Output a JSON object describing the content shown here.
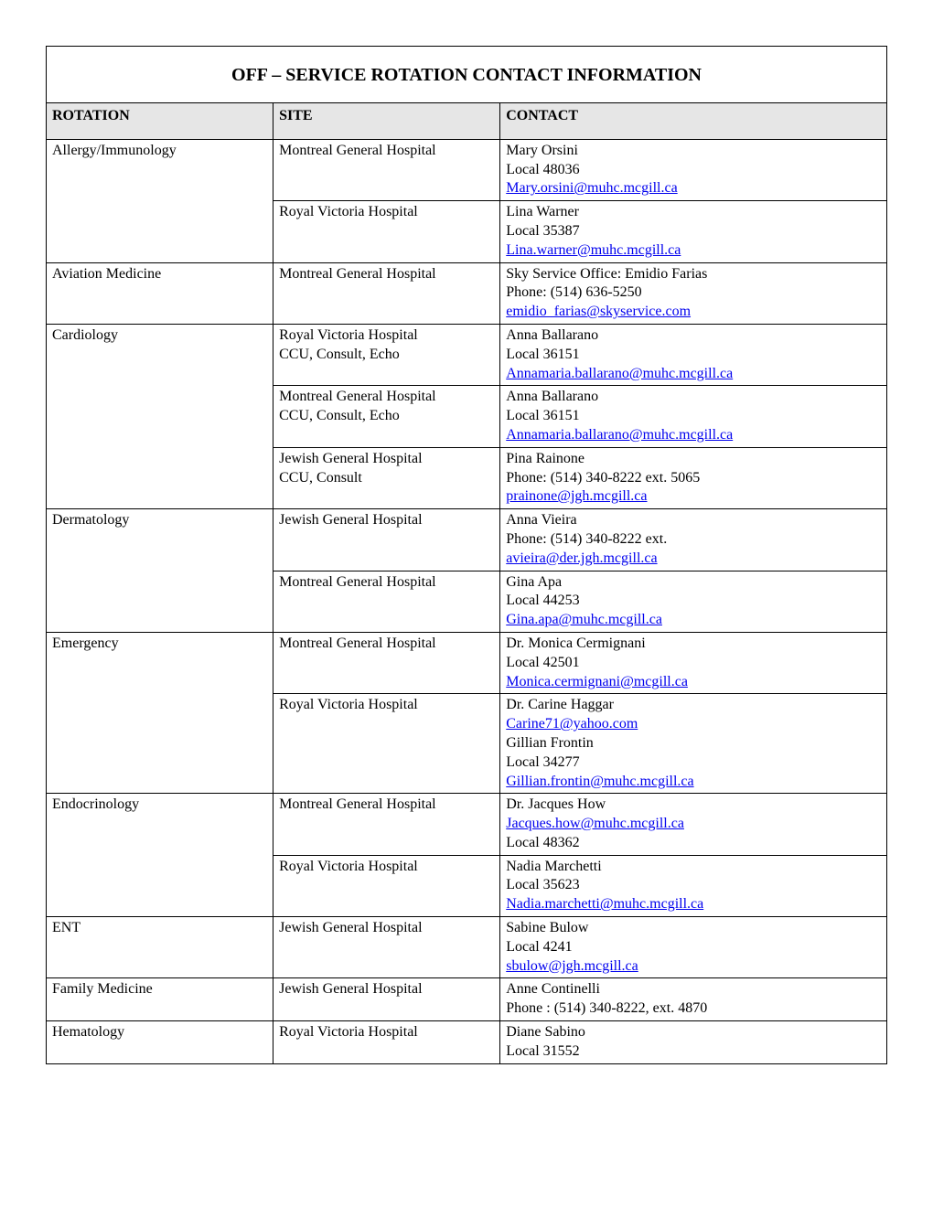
{
  "title": "OFF – SERVICE ROTATION CONTACT INFORMATION",
  "headers": {
    "rotation": "ROTATION",
    "site": "SITE",
    "contact": "CONTACT"
  },
  "rows": [
    {
      "rotation": "Allergy/Immunology",
      "rowspan": 2,
      "site": "Montreal General Hospital",
      "contact": {
        "lines": [
          "Mary Orsini",
          "Local 48036"
        ],
        "email": "Mary.orsini@muhc.mcgill.ca"
      }
    },
    {
      "rotation": "",
      "site": "Royal Victoria Hospital",
      "contact": {
        "lines": [
          "Lina Warner",
          "Local 35387"
        ],
        "email": "Lina.warner@muhc.mcgill.ca"
      }
    },
    {
      "rotation": "Aviation Medicine",
      "rowspan": 1,
      "site": "Montreal General Hospital",
      "contact": {
        "lines": [
          "Sky Service Office: Emidio Farias",
          "Phone: (514) 636-5250"
        ],
        "email": "emidio_farias@skyservice.com"
      }
    },
    {
      "rotation": "Cardiology",
      "rowspan": 3,
      "site": "Royal Victoria Hospital\nCCU, Consult, Echo",
      "contact": {
        "lines": [
          "Anna Ballarano",
          "Local 36151"
        ],
        "email": "Annamaria.ballarano@muhc.mcgill.ca"
      }
    },
    {
      "rotation": "",
      "site": "Montreal General Hospital\nCCU, Consult, Echo",
      "contact": {
        "lines": [
          "Anna Ballarano",
          "Local 36151"
        ],
        "email": "Annamaria.ballarano@muhc.mcgill.ca"
      }
    },
    {
      "rotation": "",
      "site": "Jewish General Hospital\nCCU, Consult",
      "contact": {
        "lines": [
          "Pina Rainone",
          "Phone: (514) 340-8222 ext. 5065"
        ],
        "email": "prainone@jgh.mcgill.ca"
      }
    },
    {
      "rotation": "Dermatology",
      "rowspan": 2,
      "site": "Jewish General Hospital",
      "contact": {
        "lines": [
          "Anna Vieira",
          "Phone: (514) 340-8222 ext."
        ],
        "email": "avieira@der.jgh.mcgill.ca"
      }
    },
    {
      "rotation": "",
      "site": "Montreal General Hospital",
      "contact": {
        "lines": [
          "Gina Apa",
          "Local 44253"
        ],
        "email": "Gina.apa@muhc.mcgill.ca"
      }
    },
    {
      "rotation": "Emergency",
      "rowspan": 2,
      "site": "Montreal General Hospital",
      "contact": {
        "lines": [
          "Dr. Monica Cermignani",
          "Local 42501"
        ],
        "email": "Monica.cermignani@mcgill.ca"
      }
    },
    {
      "rotation": "",
      "site": "Royal Victoria Hospital",
      "contact": {
        "lines": [
          "Dr. Carine Haggar"
        ],
        "email": "Carine71@yahoo.com",
        "lines2": [
          "Gillian Frontin",
          "Local 34277"
        ],
        "email2": "Gillian.frontin@muhc.mcgill.ca"
      }
    },
    {
      "rotation": "Endocrinology",
      "rowspan": 2,
      "site": "Montreal General Hospital",
      "contact": {
        "lines": [
          "Dr. Jacques How"
        ],
        "email": "Jacques.how@muhc.mcgill.ca",
        "lines2": [
          "Local 48362"
        ]
      }
    },
    {
      "rotation": "",
      "site": "Royal Victoria Hospital",
      "contact": {
        "lines": [
          "Nadia Marchetti",
          "Local 35623"
        ],
        "email": "Nadia.marchetti@muhc.mcgill.ca"
      }
    },
    {
      "rotation": "ENT",
      "rowspan": 1,
      "site": "Jewish General Hospital",
      "contact": {
        "lines": [
          "Sabine Bulow",
          "Local 4241"
        ],
        "email": "sbulow@jgh.mcgill.ca"
      }
    },
    {
      "rotation": "Family Medicine",
      "rowspan": 1,
      "site": "Jewish General Hospital",
      "contact": {
        "lines": [
          "Anne Continelli",
          "Phone : (514) 340-8222, ext. 4870",
          ""
        ],
        "email": ""
      }
    },
    {
      "rotation": "Hematology",
      "rowspan": 1,
      "site": "Royal Victoria Hospital",
      "contact": {
        "lines": [
          "Diane Sabino",
          "Local 31552"
        ],
        "email": ""
      }
    }
  ],
  "link_color": "#0000ee",
  "header_bg": "#e6e6e6"
}
